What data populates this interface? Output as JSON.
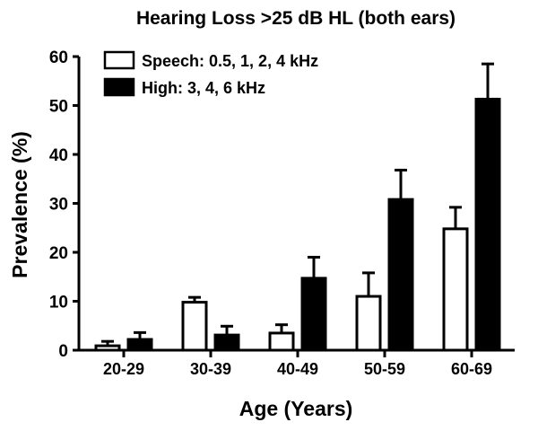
{
  "chart_data": {
    "type": "bar",
    "title": "Hearing Loss >25 dB HL (both ears)",
    "xlabel": "Age (Years)",
    "ylabel": "Prevalence (%)",
    "ylim": [
      0,
      60
    ],
    "yticks": [
      0,
      10,
      20,
      30,
      40,
      50,
      60
    ],
    "categories": [
      "20-29",
      "30-39",
      "40-49",
      "50-59",
      "60-69"
    ],
    "legend_position": "top-left",
    "series": [
      {
        "name": "Speech: 0.5, 1, 2, 4 kHz",
        "color": "#ffffff",
        "values": [
          0.9,
          9.8,
          3.5,
          11.0,
          24.8
        ],
        "error_upper": [
          1.8,
          10.8,
          5.2,
          15.8,
          29.2
        ]
      },
      {
        "name": "High: 3, 4, 6 kHz",
        "color": "#000000",
        "values": [
          2.2,
          3.1,
          14.7,
          30.8,
          51.3
        ],
        "error_upper": [
          3.6,
          4.9,
          19.0,
          36.8,
          58.5
        ]
      }
    ]
  }
}
